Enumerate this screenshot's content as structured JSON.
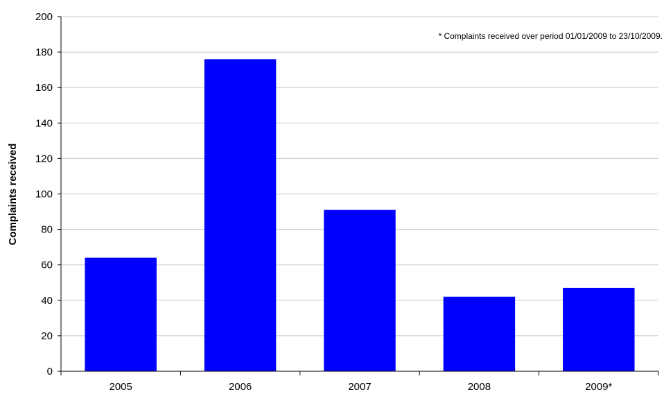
{
  "chart_data": {
    "type": "bar",
    "categories": [
      "2005",
      "2006",
      "2007",
      "2008",
      "2009*"
    ],
    "values": [
      64,
      176,
      91,
      42,
      47
    ],
    "title": "",
    "xlabel": "",
    "ylabel": "Complaints received",
    "ylim": [
      0,
      200
    ],
    "y_ticks": [
      "0",
      "20",
      "40",
      "60",
      "80",
      "100",
      "120",
      "140",
      "160",
      "180",
      "200"
    ],
    "grid": true,
    "legend": "none",
    "bar_color": "#0000FF",
    "annotation": "* Complaints received over period 01/01/2009 to 23/10/2009."
  }
}
